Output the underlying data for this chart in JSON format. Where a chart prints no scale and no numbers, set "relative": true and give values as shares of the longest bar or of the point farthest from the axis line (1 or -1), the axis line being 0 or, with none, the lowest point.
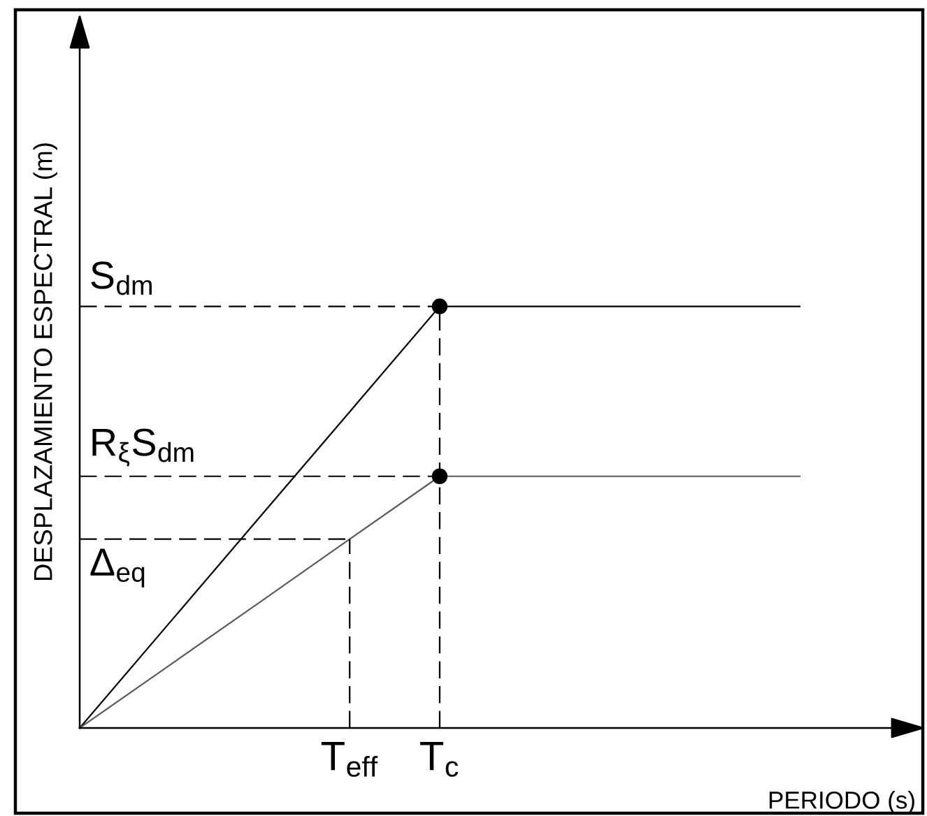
{
  "chart_data": {
    "type": "line",
    "relative": true,
    "xlabel": "PERIODO (s)",
    "ylabel": "DESPLAZAMIENTO ESPECTRAL (m)",
    "categories": [
      null,
      null,
      null,
      "T$_{eff}$",
      "T$_{c}$",
      null,
      null,
      null,
      null
    ],
    "series": [
      {
        "color": "#000000",
        "values": [
          0,
          0.25,
          0.5,
          0.75,
          1,
          1,
          1,
          1,
          1
        ]
      },
      {
        "color": "#5a5a5a",
        "values": [
          0,
          0.149,
          0.298,
          0.448,
          0.597,
          0.597,
          0.597,
          0.597,
          0.597
        ]
      },
      {
        "color": "#000000",
        "line_style": "dashed",
        "values": [
          1,
          1,
          1,
          1,
          1,
          null,
          null,
          null,
          null
        ]
      },
      {
        "color": "#000000",
        "line_style": "dashed",
        "values": [
          0.597,
          0.597,
          0.597,
          0.597,
          0.597,
          null,
          null,
          null,
          null
        ]
      },
      {
        "color": "#000000",
        "line_style": "dashed",
        "values": [
          0.448,
          0.448,
          0.448,
          0.448,
          null,
          null,
          null,
          null,
          null
        ]
      },
      {
        "color": "#000000",
        "line_style": "dashed",
        "x": [
          "T$_{eff}$",
          "T$_{eff}$"
        ],
        "values": [
          0,
          0.448
        ]
      },
      {
        "color": "#000000",
        "line_style": "dashed",
        "x": [
          "T$_{c}$",
          "T$_{c}$"
        ],
        "values": [
          0,
          1
        ]
      },
      {
        "type": "scatter",
        "marker": "circle",
        "color": "#000000",
        "x": [
          "T$_{c}$",
          "T$_{c}$"
        ],
        "values": [
          1,
          0.597
        ]
      }
    ],
    "annotations": [
      {
        "text": "S$_{dm}$",
        "y": 1
      },
      {
        "text": "R$_{ξ}$S$_{dm}$",
        "y": 0.597
      },
      {
        "text": "Δ$_{eq}$",
        "y": 0.448
      }
    ],
    "grid": false
  }
}
